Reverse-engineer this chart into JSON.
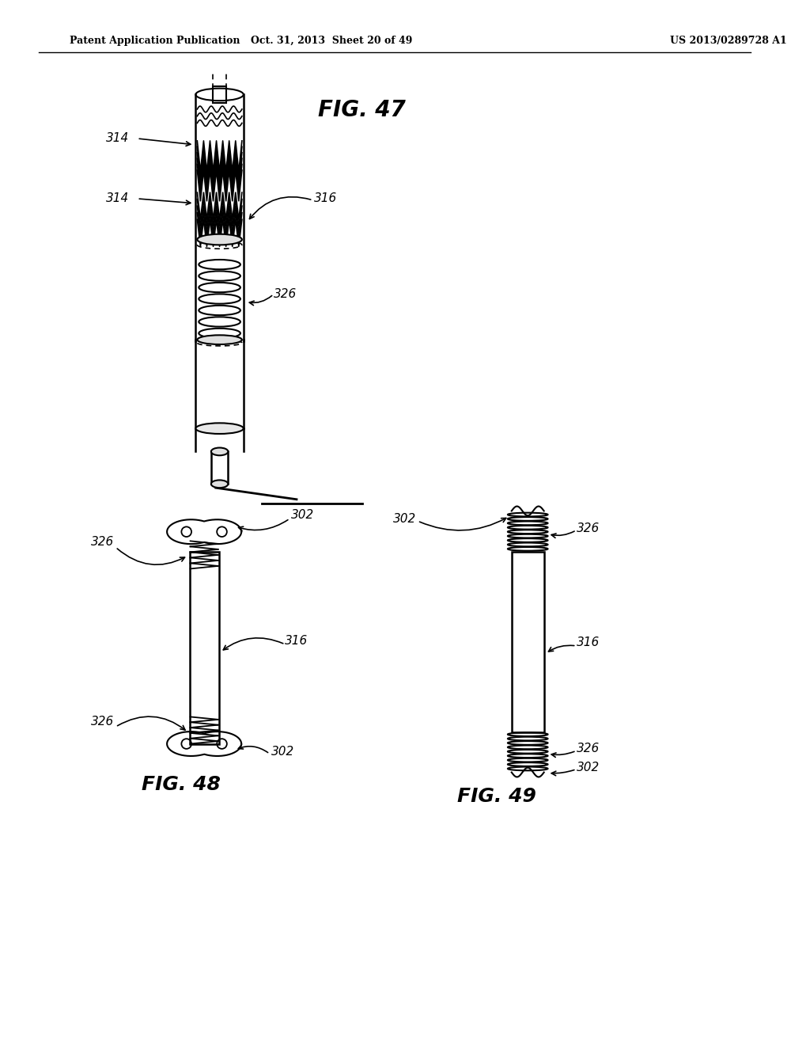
{
  "bg_color": "#ffffff",
  "line_color": "#000000",
  "header_left": "Patent Application Publication",
  "header_mid": "Oct. 31, 2013  Sheet 20 of 49",
  "header_right": "US 2013/0289728 A1",
  "fig47_label": "FIG. 47",
  "fig48_label": "FIG. 48",
  "fig49_label": "FIG. 49",
  "label_314a": "314",
  "label_314b": "314",
  "label_316a": "316",
  "label_326a": "326",
  "label_302a": "302",
  "label_302b": "302",
  "label_302c": "302",
  "label_302d": "302",
  "label_316b": "316",
  "label_326b": "326",
  "label_326c": "326",
  "label_326d": "326",
  "label_316c": "316"
}
